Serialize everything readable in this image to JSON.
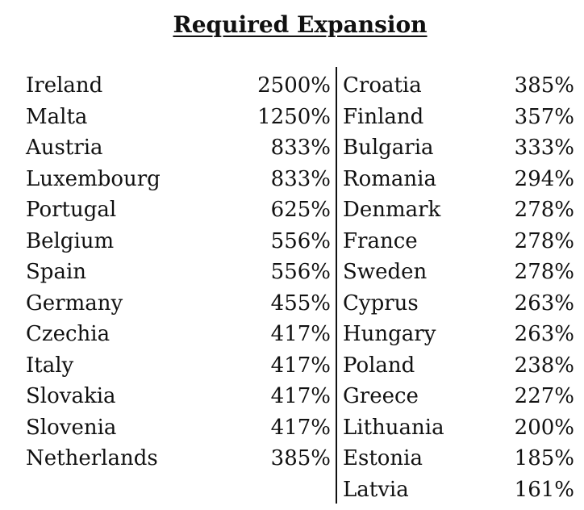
{
  "title": "Required Expansion",
  "left_column": [
    {
      "country": "Ireland",
      "value": "2500%"
    },
    {
      "country": "Malta",
      "value": "1250%"
    },
    {
      "country": "Austria",
      "value": "833%"
    },
    {
      "country": "Luxembourg",
      "value": "833%"
    },
    {
      "country": "Portugal",
      "value": "625%"
    },
    {
      "country": "Belgium",
      "value": "556%"
    },
    {
      "country": "Spain",
      "value": "556%"
    },
    {
      "country": "Germany",
      "value": "455%"
    },
    {
      "country": "Czechia",
      "value": "417%"
    },
    {
      "country": "Italy",
      "value": "417%"
    },
    {
      "country": "Slovakia",
      "value": "417%"
    },
    {
      "country": "Slovenia",
      "value": "417%"
    },
    {
      "country": "Netherlands",
      "value": "385%"
    }
  ],
  "right_column": [
    {
      "country": "Croatia",
      "value": "385%"
    },
    {
      "country": "Finland",
      "value": "357%"
    },
    {
      "country": "Bulgaria",
      "value": "333%"
    },
    {
      "country": "Romania",
      "value": "294%"
    },
    {
      "country": "Denmark",
      "value": "278%"
    },
    {
      "country": "France",
      "value": "278%"
    },
    {
      "country": "Sweden",
      "value": "278%"
    },
    {
      "country": "Cyprus",
      "value": "263%"
    },
    {
      "country": "Hungary",
      "value": "263%"
    },
    {
      "country": "Poland",
      "value": "238%"
    },
    {
      "country": "Greece",
      "value": "227%"
    },
    {
      "country": "Lithuania",
      "value": "200%"
    },
    {
      "country": "Estonia",
      "value": "185%"
    },
    {
      "country": "Latvia",
      "value": "161%"
    }
  ]
}
